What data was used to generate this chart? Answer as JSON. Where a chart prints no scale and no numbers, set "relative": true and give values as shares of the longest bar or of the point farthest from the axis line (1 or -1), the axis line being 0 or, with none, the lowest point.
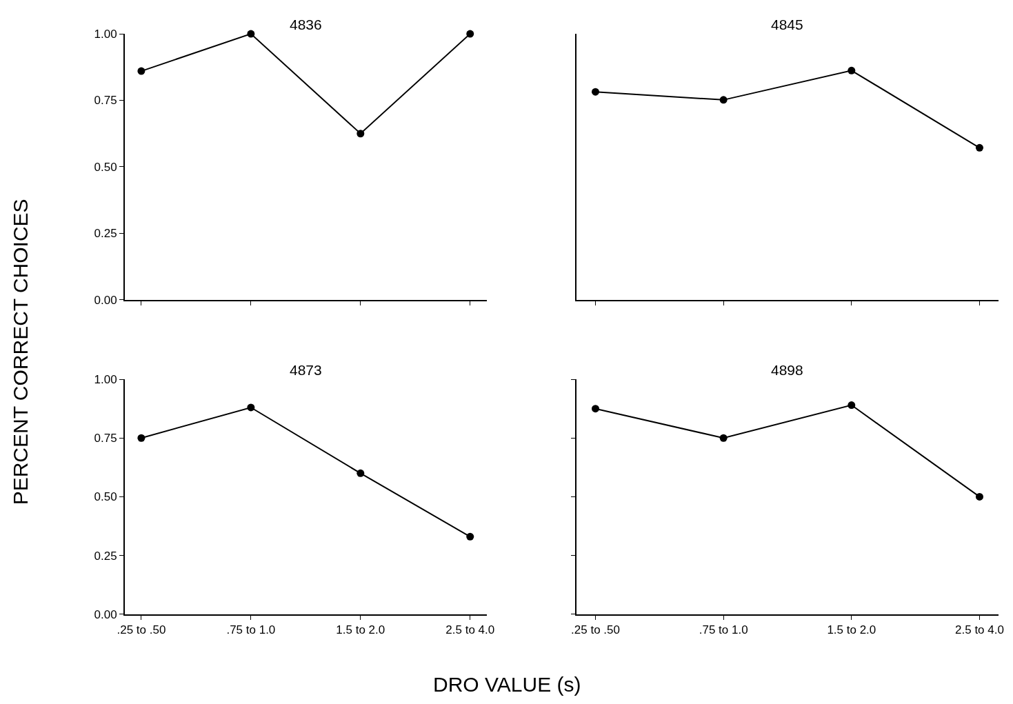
{
  "chart_data": [
    {
      "type": "line",
      "title": "4836",
      "ylabel": "PERCENT CORRECT CHOICES",
      "categories": [
        null,
        null,
        null,
        null
      ],
      "values": [
        0.86,
        1.0,
        0.625,
        1.0
      ],
      "color": "#000000",
      "marker": "circle",
      "ylim": [
        0,
        1
      ],
      "yticks": [
        {
          "value": 0,
          "label": "0.00"
        },
        {
          "value": 0.25,
          "label": "0.25"
        },
        {
          "value": 0.5,
          "label": "0.50"
        },
        {
          "value": 0.75,
          "label": "0.75"
        },
        {
          "value": 1,
          "label": "1.00"
        }
      ],
      "tick_labels": "y"
    },
    {
      "type": "line",
      "title": "4845",
      "categories": [
        null,
        null,
        null,
        null
      ],
      "values": [
        0.907,
        0.872,
        1,
        0.663
      ],
      "color": "#000000",
      "marker": "circle",
      "relative": true,
      "tick_labels": false
    },
    {
      "type": "line",
      "title": "4873",
      "xlabel": "DRO VALUE (s)",
      "categories": [
        ".25 to .50",
        ".75 to 1.0",
        "1.5 to 2.0",
        "2.5 to 4.0"
      ],
      "values": [
        0.75,
        0.88,
        0.6,
        0.33
      ],
      "color": "#000000",
      "marker": "circle",
      "ylim": [
        0,
        1
      ],
      "yticks": [
        {
          "value": 0,
          "label": "0.00"
        },
        {
          "value": 0.25,
          "label": "0.25"
        },
        {
          "value": 0.5,
          "label": "0.50"
        },
        {
          "value": 0.75,
          "label": "0.75"
        },
        {
          "value": 1,
          "label": "1.00"
        }
      ]
    },
    {
      "type": "line",
      "title": "4898",
      "categories": [
        ".25 to .50",
        ".75 to 1.0",
        "1.5 to 2.0",
        "2.5 to 4.0"
      ],
      "values": [
        0.875,
        0.75,
        0.89,
        0.5
      ],
      "color": "#000000",
      "marker": "circle",
      "ylim": [
        0,
        1
      ],
      "yticks": [
        {
          "value": 0,
          "label": null
        },
        {
          "value": 0.25,
          "label": null
        },
        {
          "value": 0.5,
          "label": null
        },
        {
          "value": 0.75,
          "label": null
        },
        {
          "value": 1,
          "label": null
        }
      ],
      "tick_labels": "x"
    }
  ]
}
